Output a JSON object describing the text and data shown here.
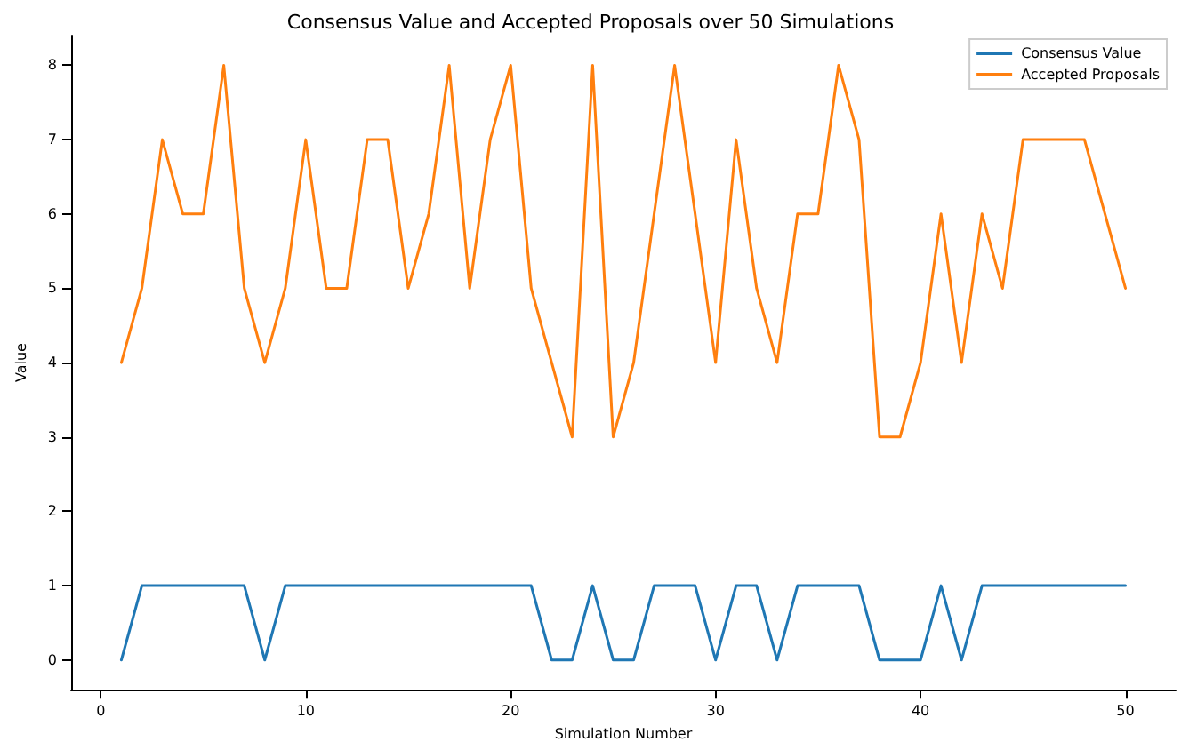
{
  "chart_data": {
    "type": "line",
    "title": "Consensus Value and Accepted Proposals over 50 Simulations",
    "xlabel": "Simulation Number",
    "ylabel": "Value",
    "x": [
      1,
      2,
      3,
      4,
      5,
      6,
      7,
      8,
      9,
      10,
      11,
      12,
      13,
      14,
      15,
      16,
      17,
      18,
      19,
      20,
      21,
      22,
      23,
      24,
      25,
      26,
      27,
      28,
      29,
      30,
      31,
      32,
      33,
      34,
      35,
      36,
      37,
      38,
      39,
      40,
      41,
      42,
      43,
      44,
      45,
      46,
      47,
      48,
      49,
      50
    ],
    "series": [
      {
        "name": "Consensus Value",
        "color": "#1f77b4",
        "values": [
          0,
          1,
          1,
          1,
          1,
          1,
          1,
          0,
          1,
          1,
          1,
          1,
          1,
          1,
          1,
          1,
          1,
          1,
          1,
          1,
          1,
          0,
          0,
          1,
          0,
          0,
          1,
          1,
          1,
          0,
          1,
          1,
          0,
          1,
          1,
          1,
          1,
          0,
          0,
          0,
          1,
          0,
          1,
          1,
          1,
          1,
          1,
          1,
          1,
          1
        ]
      },
      {
        "name": "Accepted Proposals",
        "color": "#ff7f0e",
        "values": [
          4,
          5,
          7,
          6,
          6,
          8,
          5,
          4,
          5,
          7,
          5,
          5,
          7,
          7,
          5,
          6,
          8,
          5,
          7,
          8,
          5,
          4,
          3,
          8,
          3,
          4,
          6,
          8,
          6,
          4,
          7,
          5,
          4,
          6,
          6,
          8,
          7,
          3,
          3,
          4,
          6,
          4,
          6,
          5,
          7,
          7,
          7,
          7,
          6,
          5
        ]
      }
    ],
    "xlim": [
      -1.45,
      52.45
    ],
    "xticks": [
      0,
      10,
      20,
      30,
      40,
      50
    ],
    "ylim": [
      -0.4,
      8.4
    ],
    "yticks": [
      0,
      1,
      2,
      3,
      4,
      5,
      6,
      7,
      8
    ],
    "grid": false,
    "legend": "top right",
    "marker": "none",
    "line_style": "solid"
  }
}
